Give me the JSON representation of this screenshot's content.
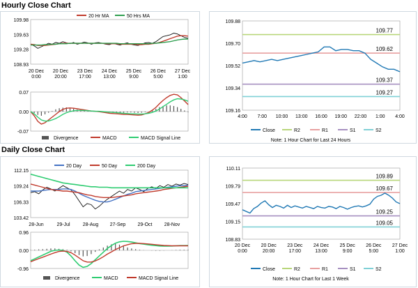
{
  "sections": {
    "hourly_title": "Hourly Close Chart",
    "daily_title": "Daily Close Chart"
  },
  "colors": {
    "close": "#1f78b4",
    "ma_short": "#c0392b",
    "ma_long": "#2e9e4f",
    "r2": "#b8d67a",
    "r1": "#e8a0a0",
    "s1": "#a68fc0",
    "s2": "#7fd0d6",
    "divergence": "#555555",
    "macd": "#c0392b",
    "signal": "#2ecc71",
    "ma200": "#2ecc71",
    "ma20": "#4472c4"
  },
  "chart_data": [
    {
      "id": "hourly-price",
      "type": "line",
      "legend": [
        "20 Hr MA",
        "50 Hrs MA"
      ],
      "ylim": [
        108.93,
        109.98
      ],
      "yticks": [
        "109.98",
        "109.63",
        "109.28",
        "108.93"
      ],
      "xticks": [
        "20 Dec\n0:00",
        "20 Dec\n20:00",
        "23 Dec\n17:00",
        "24 Dec\n13:00",
        "25 Dec\n9:00",
        "26 Dec\n5:00",
        "27 Dec\n1:00"
      ],
      "series": [
        {
          "name": "Close",
          "values": [
            109.4,
            109.36,
            109.3,
            109.34,
            109.38,
            109.42,
            109.4,
            109.44,
            109.42,
            109.46,
            109.43,
            109.41,
            109.44,
            109.4,
            109.42,
            109.45,
            109.43,
            109.4,
            109.43,
            109.44,
            109.42,
            109.4,
            109.39,
            109.42,
            109.4,
            109.38,
            109.41,
            109.43,
            109.4,
            109.38,
            109.37,
            109.4,
            109.43,
            109.44,
            109.42,
            109.46,
            109.52,
            109.58,
            109.6,
            109.62,
            109.66,
            109.64,
            109.6,
            109.56,
            109.54
          ]
        },
        {
          "name": "20 Hr MA",
          "values": [
            109.4,
            109.39,
            109.37,
            109.37,
            109.37,
            109.38,
            109.39,
            109.4,
            109.41,
            109.42,
            109.42,
            109.42,
            109.42,
            109.42,
            109.42,
            109.42,
            109.42,
            109.42,
            109.42,
            109.42,
            109.42,
            109.41,
            109.41,
            109.41,
            109.41,
            109.4,
            109.4,
            109.4,
            109.4,
            109.4,
            109.39,
            109.39,
            109.4,
            109.4,
            109.41,
            109.42,
            109.44,
            109.47,
            109.5,
            109.53,
            109.56,
            109.59,
            109.6,
            109.6,
            109.59
          ]
        },
        {
          "name": "50 Hrs MA",
          "values": [
            109.38,
            109.38,
            109.38,
            109.38,
            109.39,
            109.39,
            109.4,
            109.4,
            109.41,
            109.41,
            109.41,
            109.42,
            109.42,
            109.42,
            109.42,
            109.42,
            109.42,
            109.42,
            109.42,
            109.42,
            109.42,
            109.42,
            109.42,
            109.42,
            109.42,
            109.41,
            109.41,
            109.41,
            109.41,
            109.41,
            109.41,
            109.41,
            109.41,
            109.41,
            109.42,
            109.42,
            109.43,
            109.44,
            109.45,
            109.46,
            109.48,
            109.5,
            109.51,
            109.52,
            109.52
          ]
        }
      ]
    },
    {
      "id": "hourly-macd",
      "type": "line",
      "legend": [
        "Divergence",
        "MACD",
        "MACD Signal Line"
      ],
      "ylim": [
        -0.07,
        0.07
      ],
      "yticks": [
        "0.07",
        "0.00",
        "-0.07"
      ],
      "series": [
        {
          "name": "Divergence",
          "values": [
            0,
            -0.005,
            -0.012,
            -0.015,
            -0.01,
            -0.004,
            0.002,
            0.008,
            0.012,
            0.014,
            0.015,
            0.013,
            0.01,
            0.007,
            0.005,
            0.003,
            0.002,
            0.001,
            0,
            -0.001,
            -0.002,
            -0.003,
            -0.004,
            -0.004,
            -0.005,
            -0.005,
            -0.004,
            -0.003,
            -0.003,
            -0.004,
            -0.005,
            -0.004,
            -0.002,
            0,
            0.004,
            0.01,
            0.016,
            0.02,
            0.022,
            0.022,
            0.02,
            0.016,
            0.01,
            0.004,
            -0.002
          ]
        },
        {
          "name": "MACD",
          "values": [
            0.0,
            -0.015,
            -0.035,
            -0.045,
            -0.04,
            -0.03,
            -0.02,
            -0.01,
            0.0,
            0.008,
            0.012,
            0.013,
            0.012,
            0.01,
            0.008,
            0.006,
            0.004,
            0.002,
            0.001,
            0,
            -0.002,
            -0.004,
            -0.006,
            -0.007,
            -0.008,
            -0.009,
            -0.01,
            -0.01,
            -0.011,
            -0.012,
            -0.013,
            -0.012,
            -0.008,
            -0.003,
            0.005,
            0.015,
            0.028,
            0.04,
            0.05,
            0.058,
            0.062,
            0.06,
            0.05,
            0.038,
            0.025
          ]
        },
        {
          "name": "MACD Signal Line",
          "values": [
            0.0,
            -0.008,
            -0.02,
            -0.03,
            -0.034,
            -0.034,
            -0.03,
            -0.025,
            -0.018,
            -0.01,
            -0.004,
            0.0,
            0.003,
            0.004,
            0.004,
            0.004,
            0.003,
            0.002,
            0.001,
            0.001,
            0,
            -0.001,
            -0.002,
            -0.003,
            -0.004,
            -0.005,
            -0.006,
            -0.007,
            -0.008,
            -0.008,
            -0.009,
            -0.009,
            -0.008,
            -0.006,
            -0.003,
            0.002,
            0.009,
            0.018,
            0.026,
            0.035,
            0.042,
            0.046,
            0.045,
            0.042,
            0.037
          ]
        }
      ]
    },
    {
      "id": "hourly-24h",
      "type": "line",
      "ylim": [
        109.16,
        109.88
      ],
      "yticks": [
        "109.88",
        "109.70",
        "109.52",
        "109.34",
        "109.16"
      ],
      "xticks": [
        "4:00",
        "7:00",
        "10:00",
        "13:00",
        "16:00",
        "19:00",
        "22:00",
        "1:00",
        "4:00"
      ],
      "levels": [
        {
          "name": "R2",
          "value": 109.77,
          "label": "109.77"
        },
        {
          "name": "R1",
          "value": 109.62,
          "label": "109.62"
        },
        {
          "name": "S1",
          "value": 109.37,
          "label": "109.37"
        },
        {
          "name": "S2",
          "value": 109.27,
          "label": "109.27"
        }
      ],
      "legend": [
        "Close",
        "R2",
        "R1",
        "S1",
        "S2"
      ],
      "note": "Note: 1 Hour Chart for Last 24 Hours",
      "series": [
        {
          "name": "Close",
          "values": [
            109.54,
            109.55,
            109.56,
            109.55,
            109.56,
            109.57,
            109.56,
            109.57,
            109.58,
            109.59,
            109.6,
            109.61,
            109.62,
            109.63,
            109.67,
            109.67,
            109.64,
            109.65,
            109.65,
            109.64,
            109.64,
            109.62,
            109.57,
            109.54,
            109.51,
            109.49,
            109.49,
            109.47
          ]
        }
      ]
    },
    {
      "id": "daily-price",
      "type": "line",
      "legend": [
        "20 Day",
        "50 Day",
        "200 Day"
      ],
      "ylim": [
        103.42,
        112.15
      ],
      "yticks": [
        "112.15",
        "109.24",
        "106.33",
        "103.42"
      ],
      "xticks": [
        "28-Jun",
        "29-Jul",
        "28-Aug",
        "27-Sep",
        "29-Oct",
        "28-Nov"
      ],
      "series": [
        {
          "name": "Close",
          "values": [
            108.0,
            108.2,
            107.8,
            108.5,
            109.0,
            108.7,
            108.3,
            108.8,
            109.3,
            108.9,
            108.5,
            107.6,
            106.5,
            105.4,
            106.0,
            105.8,
            105.0,
            105.5,
            106.2,
            106.8,
            107.3,
            107.8,
            108.3,
            107.9,
            108.6,
            108.3,
            108.9,
            108.6,
            108.2,
            108.8,
            109.1,
            108.8,
            109.3,
            109.0,
            109.5,
            109.2,
            109.6,
            109.4,
            109.7,
            109.5
          ]
        },
        {
          "name": "20 Day",
          "values": [
            108.3,
            108.3,
            108.3,
            108.4,
            108.5,
            108.6,
            108.6,
            108.6,
            108.7,
            108.7,
            108.6,
            108.3,
            107.9,
            107.5,
            107.2,
            106.9,
            106.6,
            106.4,
            106.3,
            106.3,
            106.5,
            106.8,
            107.1,
            107.4,
            107.7,
            107.9,
            108.2,
            108.3,
            108.4,
            108.5,
            108.6,
            108.7,
            108.8,
            108.9,
            109.0,
            109.1,
            109.2,
            109.3,
            109.3,
            109.4
          ]
        },
        {
          "name": "50 Day",
          "values": [
            109.6,
            109.4,
            109.2,
            109.0,
            108.8,
            108.6,
            108.5,
            108.4,
            108.3,
            108.3,
            108.2,
            108.1,
            108.0,
            107.8,
            107.6,
            107.5,
            107.3,
            107.2,
            107.1,
            107.1,
            107.1,
            107.2,
            107.3,
            107.4,
            107.5,
            107.6,
            107.8,
            107.9,
            108.0,
            108.1,
            108.2,
            108.3,
            108.4,
            108.6,
            108.7,
            108.8,
            108.9,
            109.0,
            109.1,
            109.2
          ]
        },
        {
          "name": "200 Day",
          "values": [
            111.4,
            111.2,
            111.0,
            110.8,
            110.6,
            110.4,
            110.2,
            110.0,
            109.8,
            109.7,
            109.6,
            109.5,
            109.4,
            109.3,
            109.2,
            109.1,
            109.1,
            109.0,
            109.0,
            109.0,
            108.9,
            108.9,
            108.9,
            108.9,
            108.9,
            108.9,
            108.9,
            108.9,
            108.9,
            108.9,
            108.9,
            108.9,
            108.9,
            108.9,
            108.9,
            108.9,
            108.9,
            108.9,
            108.9,
            108.9
          ]
        }
      ]
    },
    {
      "id": "daily-macd",
      "type": "line",
      "legend": [
        "Divergence",
        "MACD",
        "MACD Signal Line"
      ],
      "ylim": [
        -0.96,
        0.96
      ],
      "yticks": [
        "0.96",
        "0.00",
        "-0.96"
      ],
      "series": [
        {
          "name": "Divergence",
          "values": [
            0.02,
            0.03,
            0.05,
            0.06,
            0.08,
            0.1,
            0.1,
            0.08,
            0.06,
            0.03,
            -0.05,
            -0.15,
            -0.25,
            -0.32,
            -0.3,
            -0.2,
            -0.08,
            0.05,
            0.15,
            0.25,
            0.32,
            0.35,
            0.3,
            0.22,
            0.15,
            0.1,
            0.06,
            0.03,
            0.01,
            0,
            -0.01,
            -0.02,
            -0.02,
            -0.01,
            0,
            0.01,
            0.02,
            0.03,
            0.03,
            0.03
          ]
        },
        {
          "name": "MACD",
          "values": [
            -0.55,
            -0.45,
            -0.35,
            -0.25,
            -0.15,
            -0.05,
            0.0,
            0.02,
            0.0,
            -0.1,
            -0.3,
            -0.55,
            -0.78,
            -0.9,
            -0.85,
            -0.7,
            -0.5,
            -0.3,
            -0.1,
            0.1,
            0.25,
            0.38,
            0.45,
            0.48,
            0.47,
            0.44,
            0.4,
            0.36,
            0.33,
            0.3,
            0.27,
            0.25,
            0.23,
            0.22,
            0.22,
            0.23,
            0.24,
            0.25,
            0.25,
            0.26
          ]
        },
        {
          "name": "MACD Signal Line",
          "values": [
            -0.6,
            -0.52,
            -0.44,
            -0.36,
            -0.28,
            -0.2,
            -0.12,
            -0.06,
            -0.04,
            -0.06,
            -0.12,
            -0.25,
            -0.4,
            -0.55,
            -0.62,
            -0.62,
            -0.56,
            -0.46,
            -0.34,
            -0.2,
            -0.08,
            0.04,
            0.14,
            0.24,
            0.3,
            0.35,
            0.37,
            0.37,
            0.36,
            0.34,
            0.32,
            0.3,
            0.28,
            0.26,
            0.25,
            0.24,
            0.24,
            0.24,
            0.24,
            0.24
          ]
        }
      ]
    },
    {
      "id": "daily-week",
      "type": "line",
      "ylim": [
        108.83,
        110.11
      ],
      "yticks": [
        "110.11",
        "109.79",
        "109.47",
        "109.15",
        "108.83"
      ],
      "xticks": [
        "20 Dec\n0:00",
        "20 Dec\n20:00",
        "23 Dec\n17:00",
        "24 Dec\n13:00",
        "25 Dec\n9:00",
        "26 Dec\n5:00",
        "27 Dec\n1:00"
      ],
      "levels": [
        {
          "name": "R2",
          "value": 109.89,
          "label": "109.89"
        },
        {
          "name": "R1",
          "value": 109.67,
          "label": "109.67"
        },
        {
          "name": "S1",
          "value": 109.25,
          "label": "109.25"
        },
        {
          "name": "S2",
          "value": 109.05,
          "label": "109.05"
        }
      ],
      "legend": [
        "Close",
        "R2",
        "R1",
        "S1",
        "S2"
      ],
      "note": "Note: 1 Hour Chart for Last 1 Week",
      "series": [
        {
          "name": "Close",
          "values": [
            109.36,
            109.33,
            109.3,
            109.38,
            109.42,
            109.48,
            109.52,
            109.45,
            109.4,
            109.44,
            109.42,
            109.39,
            109.44,
            109.4,
            109.43,
            109.41,
            109.39,
            109.42,
            109.4,
            109.38,
            109.42,
            109.4,
            109.39,
            109.42,
            109.41,
            109.38,
            109.42,
            109.4,
            109.37,
            109.4,
            109.42,
            109.43,
            109.41,
            109.43,
            109.46,
            109.55,
            109.6,
            109.62,
            109.66,
            109.62,
            109.57,
            109.5,
            109.47
          ]
        }
      ]
    }
  ]
}
